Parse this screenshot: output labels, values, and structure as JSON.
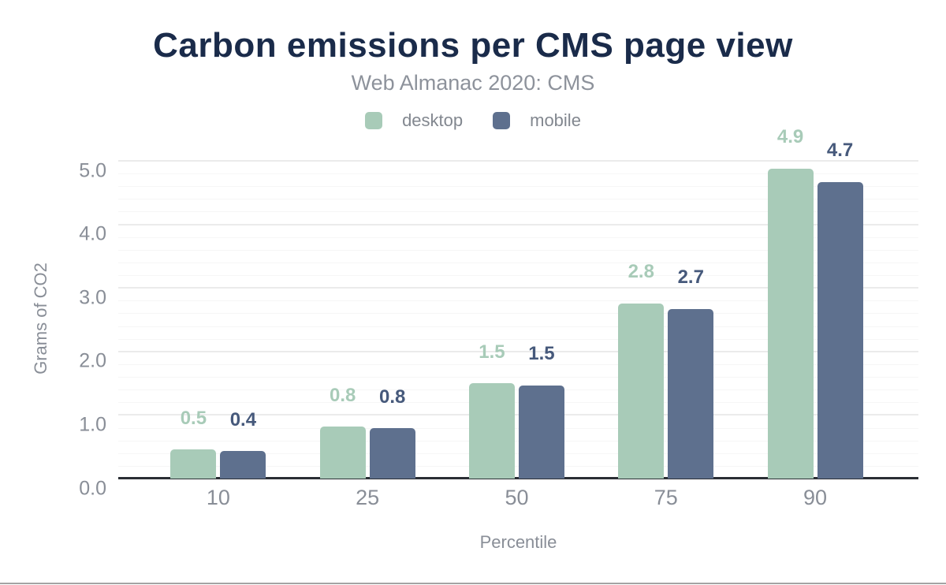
{
  "page": {
    "title": "Carbon emissions per CMS page view",
    "subtitle": "Web Almanac 2020: CMS"
  },
  "axes": {
    "y_title": "Grams of CO2",
    "x_title": "Percentile"
  },
  "colors": {
    "title_navy": "#1a2b4a",
    "gray_text": "#898e97",
    "desktop_green": "#a8cbb8",
    "mobile_slate": "#5e708e",
    "mobile_label": "#46597b",
    "baseline": "#2a2e34",
    "grid_major": "#ebebeb",
    "grid_minor": "#f6f6f6",
    "bottom_border": "#a3a3a3"
  },
  "chart_data": {
    "type": "bar",
    "title": "Carbon emissions per CMS page view",
    "subtitle": "Web Almanac 2020: CMS",
    "xlabel": "Percentile",
    "ylabel": "Grams of CO2",
    "categories": [
      "10",
      "25",
      "50",
      "75",
      "90"
    ],
    "series": [
      {
        "name": "desktop",
        "color": "#a8cbb8",
        "label_color": "#a8cbb8",
        "values": [
          0.46,
          0.82,
          1.5,
          2.76,
          4.88
        ],
        "labels": [
          "0.5",
          "0.8",
          "1.5",
          "2.8",
          "4.9"
        ]
      },
      {
        "name": "mobile",
        "color": "#5e708e",
        "label_color": "#46597b",
        "values": [
          0.43,
          0.79,
          1.47,
          2.67,
          4.67
        ],
        "labels": [
          "0.4",
          "0.8",
          "1.5",
          "2.7",
          "4.7"
        ]
      }
    ],
    "ylim": [
      0,
      5
    ],
    "ytick_values": [
      0,
      1,
      2,
      3,
      4,
      5
    ],
    "ytick_labels": [
      "0.0",
      "1.0",
      "2.0",
      "3.0",
      "4.0",
      "5.0"
    ],
    "minor_tick_step": 0.2,
    "grid": "horizontal, major every 1.0 with minor every 0.2",
    "legend_position": "top center"
  }
}
